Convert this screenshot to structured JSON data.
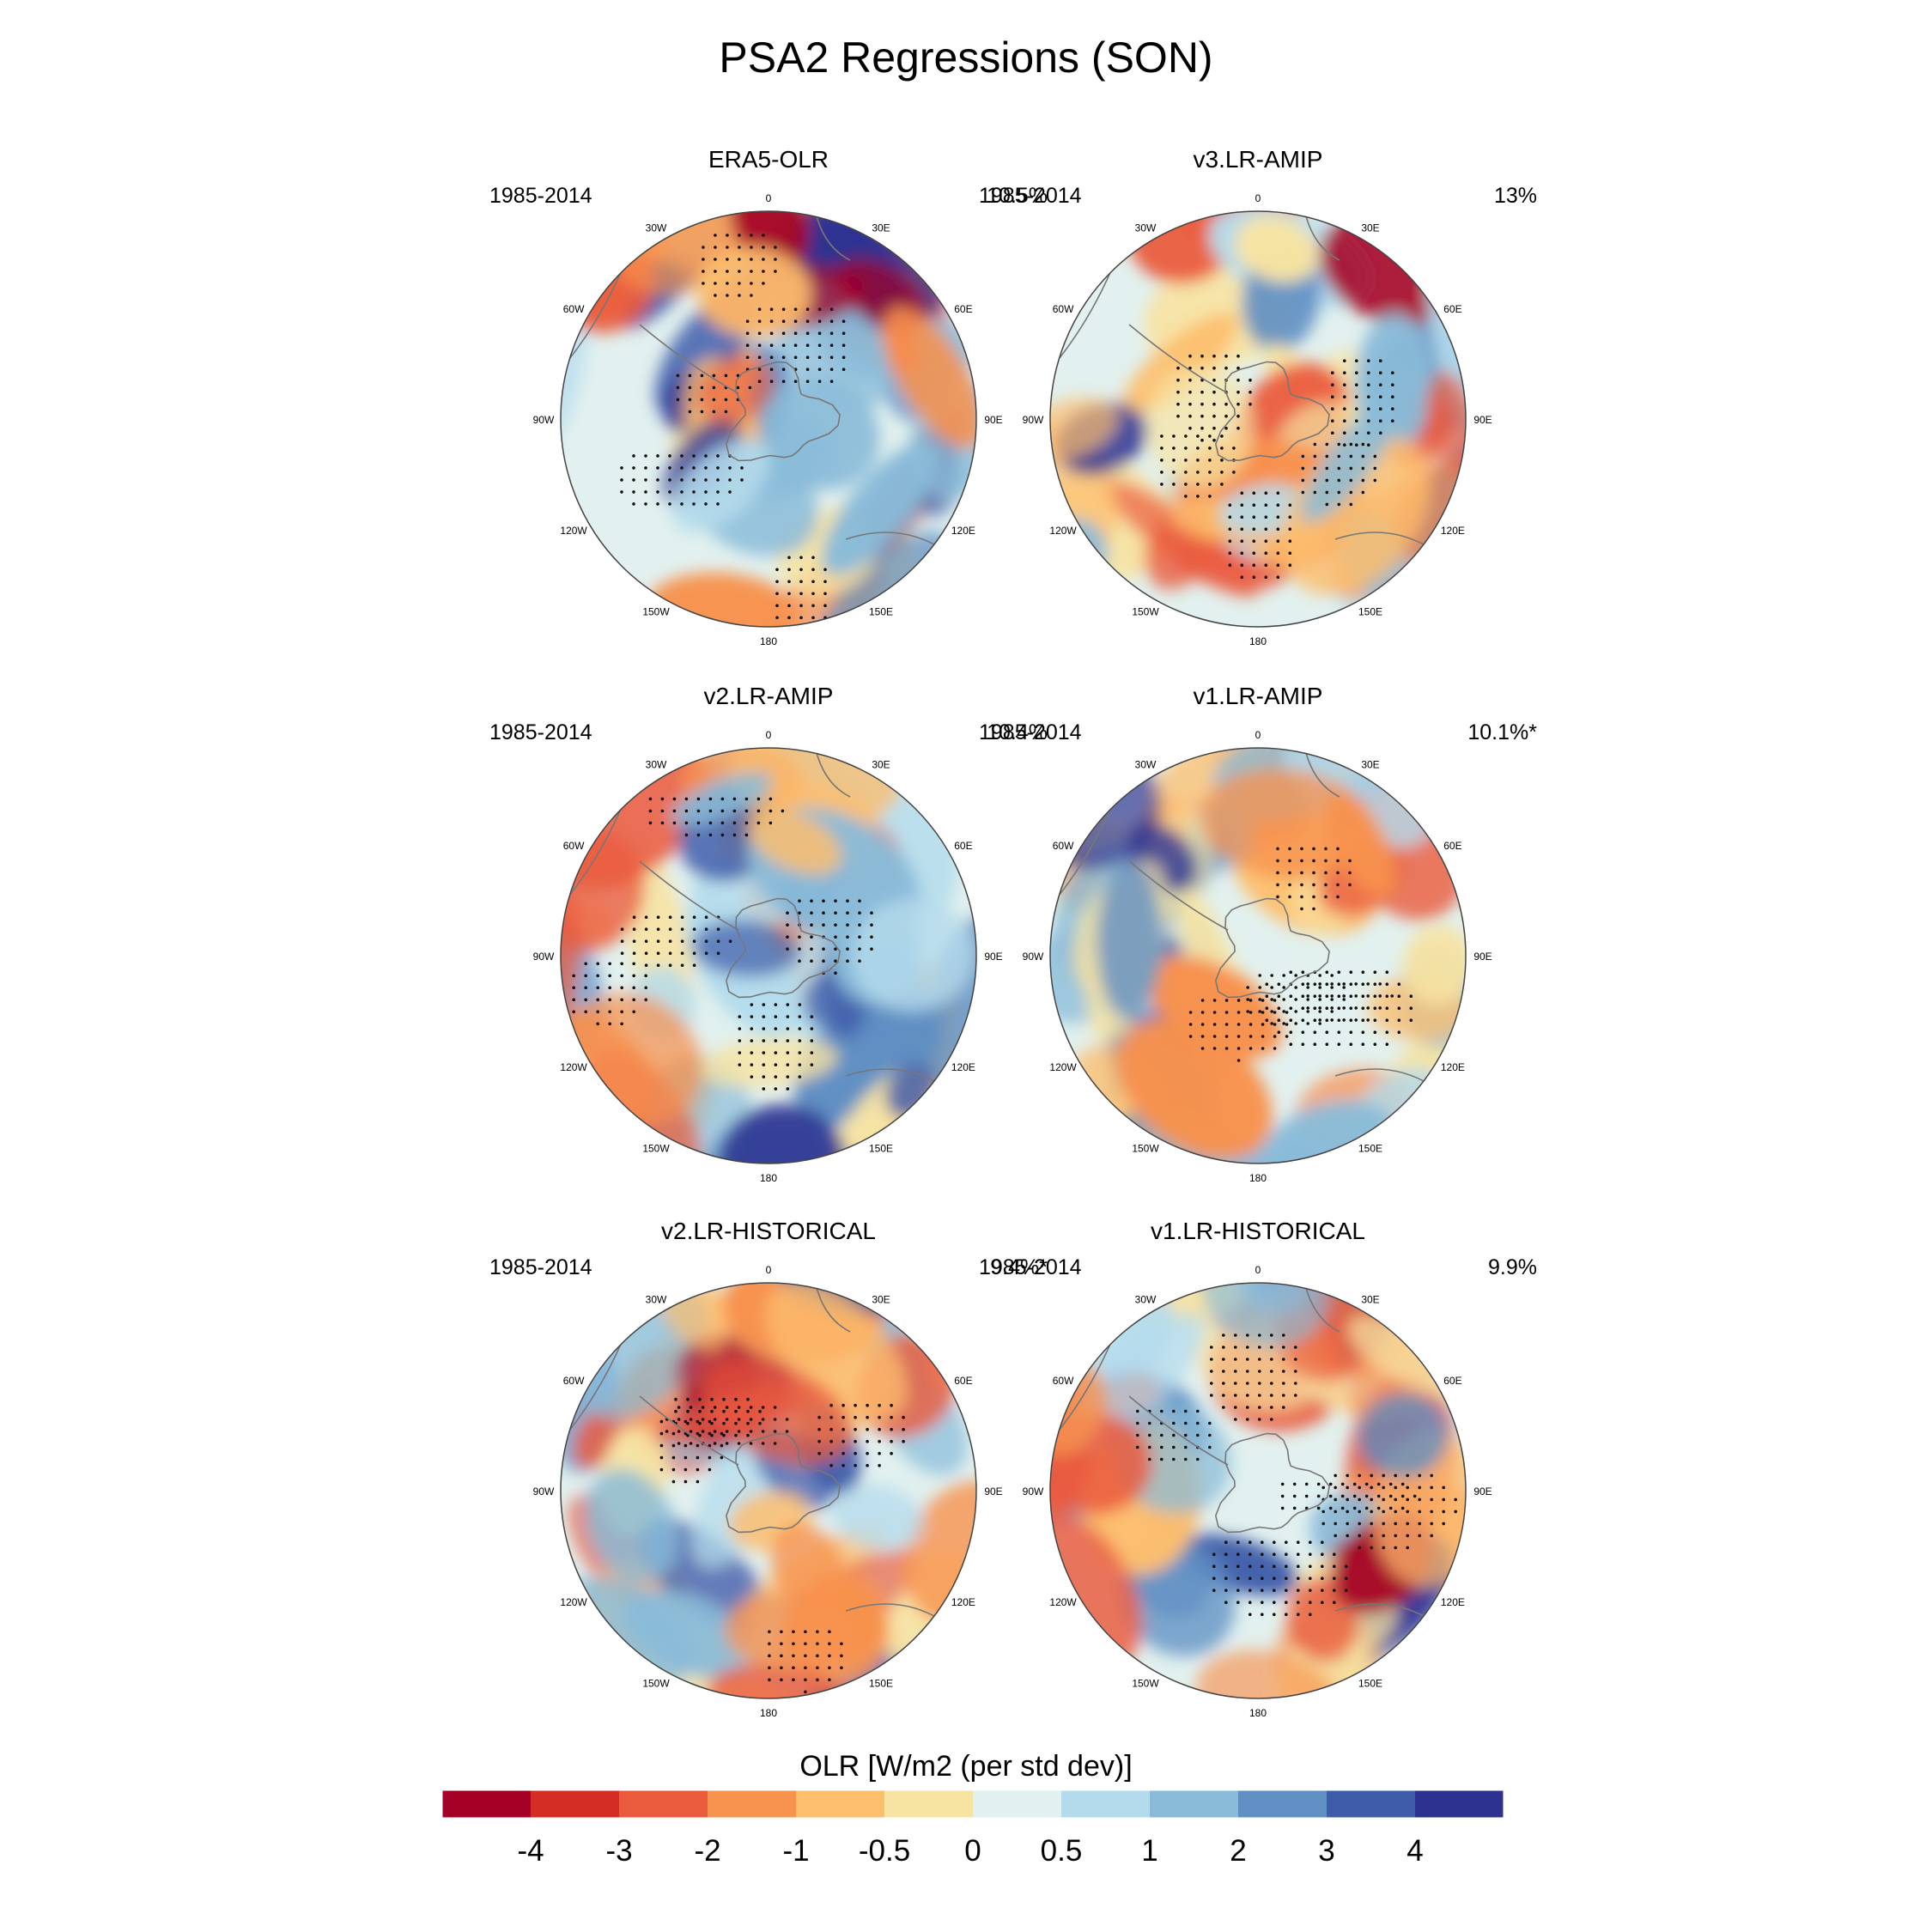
{
  "title": "PSA2 Regressions (SON)",
  "chart_data": {
    "type": "heatmap",
    "projection": "south-polar stereographic",
    "title": "PSA2 Regressions (SON)",
    "colorbar": {
      "title": "OLR [W/m2 (per std dev)]",
      "levels": [
        "-4",
        "-3",
        "-2",
        "-1",
        "-0.5",
        "0",
        "0.5",
        "1",
        "2",
        "3",
        "4"
      ],
      "colors": [
        "#a50026",
        "#d42d25",
        "#ea5b3e",
        "#f7924f",
        "#fdbe6e",
        "#f7e3a2",
        "#e2f1ef",
        "#b4dbec",
        "#89bbd9",
        "#5f8fc3",
        "#3f5ca9",
        "#2d3291"
      ]
    },
    "longitude_labels": [
      "0",
      "30E",
      "60E",
      "90E",
      "120E",
      "150E",
      "180",
      "150W",
      "120W",
      "90W",
      "60W",
      "30W"
    ],
    "panels": [
      {
        "name": "ERA5-OLR",
        "period": "1985-2014",
        "percent": "10.5%"
      },
      {
        "name": "v3.LR-AMIP",
        "period": "1985-2014",
        "percent": "13%"
      },
      {
        "name": "v2.LR-AMIP",
        "period": "1985-2014",
        "percent": "10.4%"
      },
      {
        "name": "v1.LR-AMIP",
        "period": "1985-2014",
        "percent": "10.1%*"
      },
      {
        "name": "v2.LR-HISTORICAL",
        "period": "1985-2014",
        "percent": "9.4%*"
      },
      {
        "name": "v1.LR-HISTORICAL",
        "period": "1985-2014",
        "percent": "9.9%"
      }
    ]
  }
}
